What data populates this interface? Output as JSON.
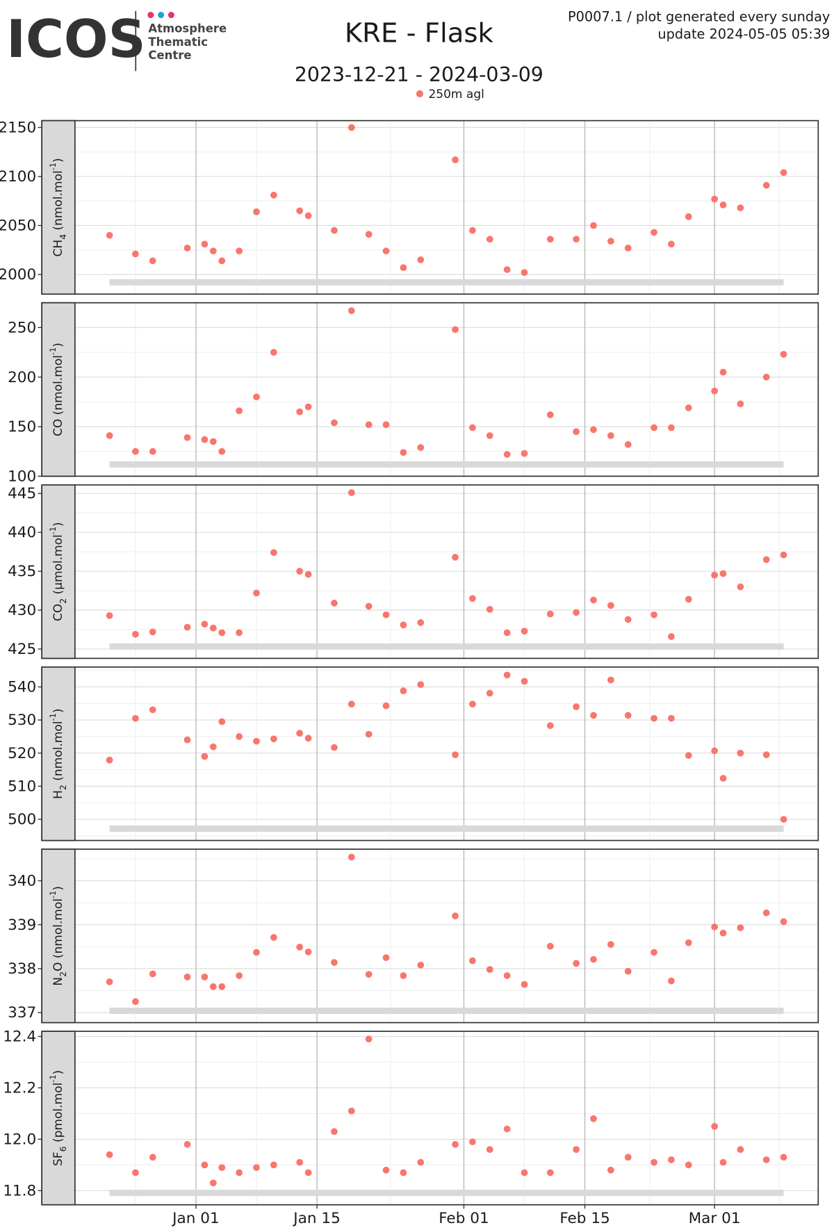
{
  "header": {
    "logo": "ICOS",
    "logo_lines": [
      "Atmosphere",
      "Thematic",
      "Centre"
    ],
    "title": "KRE - Flask",
    "subtitle": "2023-12-21 - 2024-03-09",
    "info": [
      "P0007.1 / plot generated every sunday",
      "update  2024-05-05 05:39"
    ]
  },
  "chart_data": [
    {
      "type": "scatter",
      "ylabel": {
        "gas": "CH",
        "gas_sub": "4",
        "unit": " (nmol.mol",
        "unit_sup": "-1",
        "unit_end": ")"
      },
      "x": [
        "2023-12-22",
        "2023-12-25",
        "2023-12-27",
        "2023-12-31",
        "2024-01-02",
        "2024-01-03",
        "2024-01-04",
        "2024-01-06",
        "2024-01-08",
        "2024-01-10",
        "2024-01-13",
        "2024-01-14",
        "2024-01-17",
        "2024-01-19",
        "2024-01-21",
        "2024-01-23",
        "2024-01-25",
        "2024-01-27",
        "2024-01-31",
        "2024-02-02",
        "2024-02-04",
        "2024-02-06",
        "2024-02-08",
        "2024-02-11",
        "2024-02-14",
        "2024-02-16",
        "2024-02-18",
        "2024-02-20",
        "2024-02-23",
        "2024-02-25",
        "2024-02-27",
        "2024-03-01",
        "2024-03-02",
        "2024-03-04",
        "2024-03-07",
        "2024-03-09"
      ],
      "xlim": [
        "2023-12-18",
        "2024-03-13"
      ],
      "series": [
        {
          "name": "250m agl",
          "color": "#f8766d",
          "values": [
            2040,
            2021,
            2014,
            2027,
            2031,
            2024,
            2014,
            2024,
            2064,
            2081,
            2065,
            2060,
            2045,
            2150,
            2041,
            2024,
            2007,
            2015,
            2117,
            2045,
            2036,
            2005,
            2002,
            2036,
            2036,
            2050,
            2034,
            2027,
            2043,
            2031,
            2059,
            2077,
            2071,
            2068,
            2091,
            2104
          ]
        }
      ],
      "ylim": [
        1980,
        2157
      ],
      "yticks": [
        2000,
        2050,
        2100,
        2150
      ],
      "grid": true
    },
    {
      "type": "scatter",
      "ylabel": {
        "gas": "CO",
        "unit": " (nmol.mol",
        "unit_sup": "-1",
        "unit_end": ")"
      },
      "x": [
        "2023-12-22",
        "2023-12-25",
        "2023-12-27",
        "2023-12-31",
        "2024-01-02",
        "2024-01-03",
        "2024-01-04",
        "2024-01-06",
        "2024-01-08",
        "2024-01-10",
        "2024-01-13",
        "2024-01-14",
        "2024-01-17",
        "2024-01-19",
        "2024-01-21",
        "2024-01-23",
        "2024-01-25",
        "2024-01-27",
        "2024-01-31",
        "2024-02-02",
        "2024-02-04",
        "2024-02-06",
        "2024-02-08",
        "2024-02-11",
        "2024-02-14",
        "2024-02-16",
        "2024-02-18",
        "2024-02-20",
        "2024-02-23",
        "2024-02-25",
        "2024-02-27",
        "2024-03-01",
        "2024-03-02",
        "2024-03-04",
        "2024-03-07",
        "2024-03-09"
      ],
      "xlim": [
        "2023-12-18",
        "2024-03-13"
      ],
      "series": [
        {
          "name": "250m agl",
          "color": "#f8766d",
          "values": [
            141,
            125,
            125,
            139,
            137,
            135,
            125,
            166,
            180,
            225,
            165,
            170,
            154,
            267,
            152,
            152,
            124,
            129,
            248,
            149,
            141,
            122,
            123,
            162,
            145,
            147,
            141,
            132,
            149,
            149,
            169,
            186,
            205,
            173,
            200,
            223
          ]
        }
      ],
      "ylim": [
        100,
        275
      ],
      "yticks": [
        100,
        150,
        200,
        250
      ],
      "grid": true
    },
    {
      "type": "scatter",
      "ylabel": {
        "gas": "CO",
        "gas_sub": "2",
        "unit": " (µmol.mol",
        "unit_sup": "-1",
        "unit_end": ")"
      },
      "x": [
        "2023-12-22",
        "2023-12-25",
        "2023-12-27",
        "2023-12-31",
        "2024-01-02",
        "2024-01-03",
        "2024-01-04",
        "2024-01-06",
        "2024-01-08",
        "2024-01-10",
        "2024-01-13",
        "2024-01-14",
        "2024-01-17",
        "2024-01-19",
        "2024-01-21",
        "2024-01-23",
        "2024-01-25",
        "2024-01-27",
        "2024-01-31",
        "2024-02-02",
        "2024-02-04",
        "2024-02-06",
        "2024-02-08",
        "2024-02-11",
        "2024-02-14",
        "2024-02-16",
        "2024-02-18",
        "2024-02-20",
        "2024-02-23",
        "2024-02-25",
        "2024-02-27",
        "2024-03-01",
        "2024-03-02",
        "2024-03-04",
        "2024-03-07",
        "2024-03-09"
      ],
      "xlim": [
        "2023-12-18",
        "2024-03-13"
      ],
      "series": [
        {
          "name": "250m agl",
          "color": "#f8766d",
          "values": [
            429.3,
            426.9,
            427.2,
            427.8,
            428.2,
            427.7,
            427.1,
            427.1,
            432.2,
            437.4,
            435.0,
            434.6,
            430.9,
            445.1,
            430.5,
            429.4,
            428.1,
            428.4,
            436.8,
            431.5,
            430.1,
            427.1,
            427.3,
            429.5,
            429.7,
            431.3,
            430.6,
            428.8,
            429.4,
            426.6,
            431.4,
            434.5,
            434.7,
            433.0,
            436.5,
            437.1
          ]
        }
      ],
      "ylim": [
        423.8,
        446.1
      ],
      "yticks": [
        425,
        430,
        435,
        440,
        445
      ],
      "grid": true
    },
    {
      "type": "scatter",
      "ylabel": {
        "gas": "H",
        "gas_sub": "2",
        "unit": " (nmol.mol",
        "unit_sup": "-1",
        "unit_end": ")"
      },
      "x": [
        "2023-12-22",
        "2023-12-25",
        "2023-12-27",
        "2023-12-31",
        "2024-01-02",
        "2024-01-03",
        "2024-01-04",
        "2024-01-06",
        "2024-01-08",
        "2024-01-10",
        "2024-01-13",
        "2024-01-14",
        "2024-01-17",
        "2024-01-19",
        "2024-01-21",
        "2024-01-23",
        "2024-01-25",
        "2024-01-27",
        "2024-01-31",
        "2024-02-02",
        "2024-02-04",
        "2024-02-06",
        "2024-02-08",
        "2024-02-11",
        "2024-02-14",
        "2024-02-16",
        "2024-02-18",
        "2024-02-20",
        "2024-02-23",
        "2024-02-25",
        "2024-02-27",
        "2024-03-01",
        "2024-03-02",
        "2024-03-04",
        "2024-03-07",
        "2024-03-09"
      ],
      "xlim": [
        "2023-12-18",
        "2024-03-13"
      ],
      "series": [
        {
          "name": "250m agl",
          "color": "#f8766d",
          "values": [
            517.9,
            530.5,
            533.1,
            524.0,
            519.0,
            521.9,
            529.5,
            525.0,
            523.6,
            524.3,
            526.0,
            524.5,
            521.7,
            534.8,
            525.7,
            534.3,
            538.8,
            540.7,
            519.5,
            534.8,
            538.1,
            543.6,
            541.7,
            528.3,
            534.0,
            531.4,
            542.1,
            531.4,
            530.5,
            530.5,
            519.3,
            520.7,
            512.4,
            520.0,
            519.5,
            500.0
          ]
        }
      ],
      "ylim": [
        493.6,
        546
      ],
      "yticks": [
        500,
        510,
        520,
        530,
        540
      ],
      "grid": true
    },
    {
      "type": "scatter",
      "ylabel": {
        "gas": "N",
        "gas_sub": "2",
        "unit": "O (nmol.mol",
        "unit_sup": "-1",
        "unit_end": ")"
      },
      "x": [
        "2023-12-22",
        "2023-12-25",
        "2023-12-27",
        "2023-12-31",
        "2024-01-02",
        "2024-01-03",
        "2024-01-04",
        "2024-01-06",
        "2024-01-08",
        "2024-01-10",
        "2024-01-13",
        "2024-01-14",
        "2024-01-17",
        "2024-01-19",
        "2024-01-21",
        "2024-01-23",
        "2024-01-25",
        "2024-01-27",
        "2024-01-31",
        "2024-02-02",
        "2024-02-04",
        "2024-02-06",
        "2024-02-08",
        "2024-02-11",
        "2024-02-14",
        "2024-02-16",
        "2024-02-18",
        "2024-02-20",
        "2024-02-23",
        "2024-02-25",
        "2024-02-27",
        "2024-03-01",
        "2024-03-02",
        "2024-03-04",
        "2024-03-07",
        "2024-03-09"
      ],
      "xlim": [
        "2023-12-18",
        "2024-03-13"
      ],
      "series": [
        {
          "name": "250m agl",
          "color": "#f8766d",
          "values": [
            337.7,
            337.25,
            337.88,
            337.81,
            337.81,
            337.59,
            337.59,
            337.84,
            338.37,
            338.71,
            338.49,
            338.38,
            338.14,
            340.54,
            337.87,
            338.25,
            337.84,
            338.08,
            339.2,
            338.18,
            337.98,
            337.84,
            337.64,
            338.51,
            338.12,
            338.21,
            338.55,
            337.94,
            338.37,
            337.72,
            338.59,
            338.95,
            338.81,
            338.93,
            339.27,
            339.07
          ]
        }
      ],
      "ylim": [
        336.77,
        340.72
      ],
      "yticks": [
        337,
        338,
        339,
        340
      ],
      "grid": true
    },
    {
      "type": "scatter",
      "ylabel": {
        "gas": "SF",
        "gas_sub": "6",
        "unit": " (pmol.mol",
        "unit_sup": "-1",
        "unit_end": ")"
      },
      "x": [
        "2023-12-22",
        "2023-12-25",
        "2023-12-27",
        "2023-12-31",
        "2024-01-02",
        "2024-01-03",
        "2024-01-04",
        "2024-01-06",
        "2024-01-08",
        "2024-01-10",
        "2024-01-13",
        "2024-01-14",
        "2024-01-17",
        "2024-01-19",
        "2024-01-21",
        "2024-01-23",
        "2024-01-25",
        "2024-01-27",
        "2024-01-31",
        "2024-02-02",
        "2024-02-04",
        "2024-02-06",
        "2024-02-08",
        "2024-02-11",
        "2024-02-14",
        "2024-02-16",
        "2024-02-18",
        "2024-02-20",
        "2024-02-23",
        "2024-02-25",
        "2024-02-27",
        "2024-03-01",
        "2024-03-02",
        "2024-03-04",
        "2024-03-07",
        "2024-03-09"
      ],
      "xlim": [
        "2023-12-18",
        "2024-03-13"
      ],
      "series": [
        {
          "name": "250m agl",
          "color": "#f8766d",
          "values": [
            11.94,
            11.87,
            11.93,
            11.98,
            11.9,
            11.83,
            11.89,
            11.87,
            11.89,
            11.9,
            11.91,
            11.87,
            12.03,
            12.11,
            12.39,
            11.88,
            11.87,
            11.91,
            11.98,
            11.99,
            11.96,
            12.04,
            11.87,
            11.87,
            11.96,
            12.08,
            11.88,
            11.93,
            11.91,
            11.92,
            11.9,
            12.05,
            11.91,
            11.96,
            11.92,
            11.93
          ]
        }
      ],
      "ylim": [
        11.745,
        12.42
      ],
      "yticks": [
        11.8,
        {
          "value": 12.0,
          "label": "12.0"
        },
        12.2,
        12.4
      ],
      "xticks": [
        {
          "value": "2024-01-01",
          "label": "Jan 01"
        },
        {
          "value": "2024-01-15",
          "label": "Jan 15"
        },
        {
          "value": "2024-02-01",
          "label": "Feb 01"
        },
        {
          "value": "2024-02-15",
          "label": "Feb 15"
        },
        {
          "value": "2024-03-01",
          "label": "Mar 01"
        }
      ],
      "grid": true
    }
  ]
}
